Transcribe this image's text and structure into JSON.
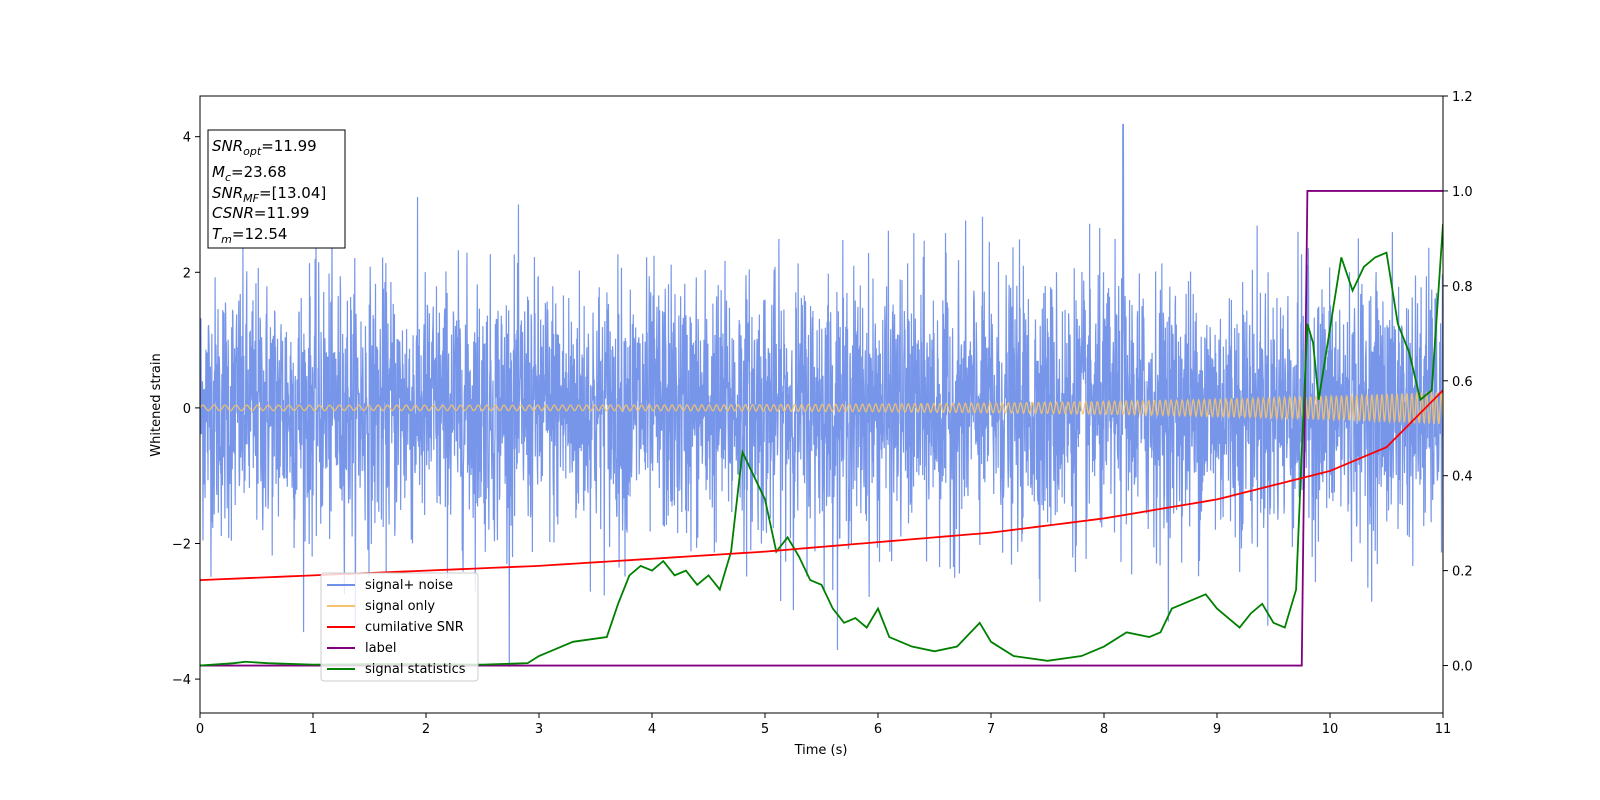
{
  "chart_data": {
    "type": "line",
    "title": "",
    "xlabel": "Time (s)",
    "ylabel": "Whitened strain",
    "xlim": [
      0,
      11
    ],
    "ylim": [
      -4.5,
      4.6
    ],
    "y2lim": [
      -0.1,
      1.2
    ],
    "xticks": [
      "0",
      "1",
      "2",
      "3",
      "4",
      "5",
      "6",
      "7",
      "8",
      "9",
      "10",
      "11"
    ],
    "yticks": [
      "4",
      "2",
      "0",
      "−2",
      "−4"
    ],
    "y2ticks": [
      "1.2",
      "1.0",
      "0.8",
      "0.6",
      "0.4",
      "0.2",
      "0.0"
    ],
    "grid": false,
    "legend_position": "lower-left",
    "annotation": {
      "snr_opt": "=11.99",
      "mc": "=23.68",
      "snr_mf": "=[13.04]",
      "csnr": "=11.99",
      "tm": "=12.54"
    },
    "series": [
      {
        "name": "signal+ noise",
        "axis": "left",
        "color": "#7090e8",
        "description": "whitened noisy strain, approx gaussian, std ~1, peaks up to 4.2 near t=8.17"
      },
      {
        "name": "signal only",
        "axis": "left",
        "color": "#f5c36b",
        "description": "chirp oscillation around 0, amplitude rising from ~0.05 to ~0.25"
      },
      {
        "name": "cumilative SNR",
        "axis": "right",
        "color": "#ff0000",
        "x": [
          0,
          1,
          2,
          3,
          4,
          5,
          6,
          7,
          8,
          9,
          9.5,
          10,
          10.5,
          11
        ],
        "y": [
          0.18,
          0.19,
          0.2,
          0.21,
          0.225,
          0.24,
          0.26,
          0.28,
          0.31,
          0.35,
          0.38,
          0.41,
          0.46,
          0.58
        ]
      },
      {
        "name": "label",
        "axis": "right",
        "color": "#800080",
        "x": [
          0,
          9.75,
          9.8,
          11
        ],
        "y": [
          0,
          0,
          1,
          1
        ]
      },
      {
        "name": "signal statistics",
        "axis": "right",
        "color": "#008000",
        "x": [
          0,
          0.3,
          0.4,
          0.6,
          1,
          1.5,
          2,
          2.5,
          2.9,
          3.0,
          3.1,
          3.3,
          3.6,
          3.7,
          3.8,
          3.9,
          4.0,
          4.1,
          4.2,
          4.3,
          4.4,
          4.5,
          4.6,
          4.7,
          4.8,
          4.9,
          5.0,
          5.1,
          5.2,
          5.3,
          5.4,
          5.5,
          5.6,
          5.7,
          5.8,
          5.9,
          6.0,
          6.1,
          6.2,
          6.3,
          6.5,
          6.7,
          6.9,
          7.0,
          7.2,
          7.5,
          7.8,
          8.0,
          8.2,
          8.4,
          8.5,
          8.6,
          8.7,
          8.8,
          8.9,
          9.0,
          9.2,
          9.3,
          9.4,
          9.5,
          9.6,
          9.7,
          9.75,
          9.8,
          9.85,
          9.9,
          10.0,
          10.1,
          10.2,
          10.3,
          10.4,
          10.5,
          10.6,
          10.7,
          10.8,
          10.9,
          11.0
        ],
        "y": [
          0.0,
          0.005,
          0.008,
          0.005,
          0.002,
          0.003,
          0.003,
          0.002,
          0.005,
          0.02,
          0.03,
          0.05,
          0.06,
          0.13,
          0.19,
          0.21,
          0.2,
          0.22,
          0.19,
          0.2,
          0.17,
          0.19,
          0.16,
          0.24,
          0.45,
          0.4,
          0.35,
          0.24,
          0.27,
          0.23,
          0.18,
          0.17,
          0.12,
          0.09,
          0.1,
          0.08,
          0.12,
          0.06,
          0.05,
          0.04,
          0.03,
          0.04,
          0.09,
          0.05,
          0.02,
          0.01,
          0.02,
          0.04,
          0.07,
          0.06,
          0.07,
          0.12,
          0.13,
          0.14,
          0.15,
          0.12,
          0.08,
          0.11,
          0.13,
          0.09,
          0.08,
          0.16,
          0.45,
          0.72,
          0.68,
          0.56,
          0.71,
          0.86,
          0.79,
          0.84,
          0.86,
          0.87,
          0.72,
          0.66,
          0.56,
          0.58,
          0.93
        ]
      }
    ]
  }
}
